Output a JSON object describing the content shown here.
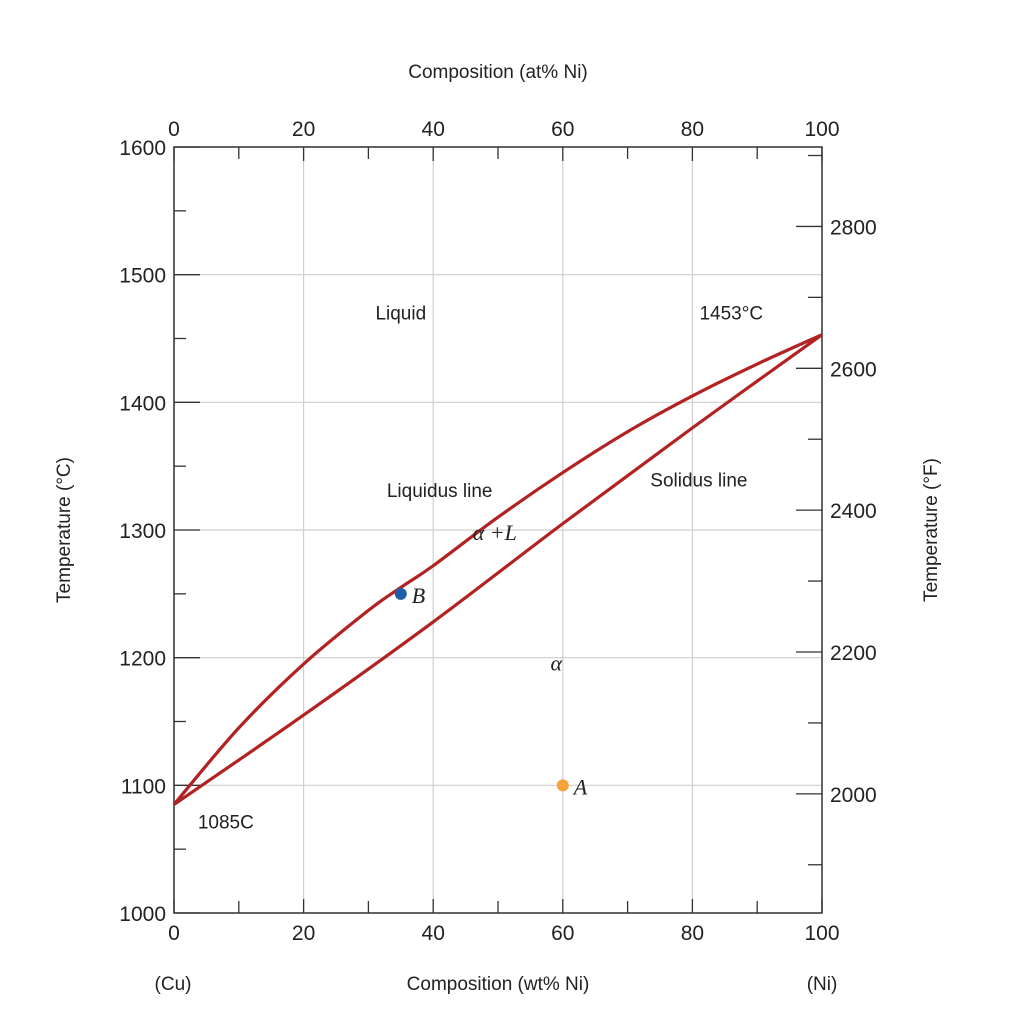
{
  "chart_data": {
    "type": "line",
    "title": "",
    "xlabel": "Composition (wt% Ni)",
    "xlabel_top": "Composition (at% Ni)",
    "ylabel": "Temperature (°C)",
    "ylabel_right": "Temperature (°F)",
    "xlim": [
      0,
      100
    ],
    "ylim": [
      1000,
      1600
    ],
    "x_ticks": [
      0,
      20,
      40,
      60,
      80,
      100
    ],
    "x_ticks_top": [
      0,
      20,
      40,
      60,
      80,
      100
    ],
    "y_ticks": [
      1000,
      1100,
      1200,
      1300,
      1400,
      1500,
      1600
    ],
    "y_ticks_right": [
      2000,
      2200,
      2400,
      2600,
      2800
    ],
    "grid": true,
    "end_labels": {
      "left": "(Cu)",
      "right": "(Ni)"
    },
    "series": [
      {
        "name": "Liquidus line",
        "color": "#b22222",
        "x": [
          0,
          10,
          20,
          30,
          35,
          40,
          50,
          60,
          70,
          80,
          90,
          100
        ],
        "y": [
          1085,
          1145,
          1195,
          1237,
          1255,
          1272,
          1310,
          1345,
          1377,
          1405,
          1430,
          1453
        ]
      },
      {
        "name": "Solidus line",
        "color": "#b22222",
        "x": [
          0,
          20,
          40,
          60,
          80,
          100
        ],
        "y": [
          1085,
          1155,
          1228,
          1305,
          1380,
          1453
        ]
      }
    ],
    "points": [
      {
        "label": "A",
        "x": 60,
        "y": 1100,
        "color": "#f7a13a"
      },
      {
        "label": "B",
        "x": 35,
        "y": 1250,
        "color": "#1f5fa8"
      }
    ],
    "annotations": [
      {
        "text": "Liquid",
        "x": 35,
        "y": 1465,
        "style": "normal"
      },
      {
        "text": "1453°C",
        "x": 86,
        "y": 1465,
        "style": "normal"
      },
      {
        "text": "Liquidus line",
        "x": 41,
        "y": 1326,
        "style": "normal"
      },
      {
        "text": "Solidus line",
        "x": 81,
        "y": 1334,
        "style": "normal"
      },
      {
        "text": "α +L",
        "x": 49.5,
        "y": 1292,
        "style": "italic"
      },
      {
        "text": "α",
        "x": 59,
        "y": 1190,
        "style": "italic"
      },
      {
        "text": "1085C",
        "x": 8,
        "y": 1066,
        "style": "normal"
      }
    ]
  }
}
